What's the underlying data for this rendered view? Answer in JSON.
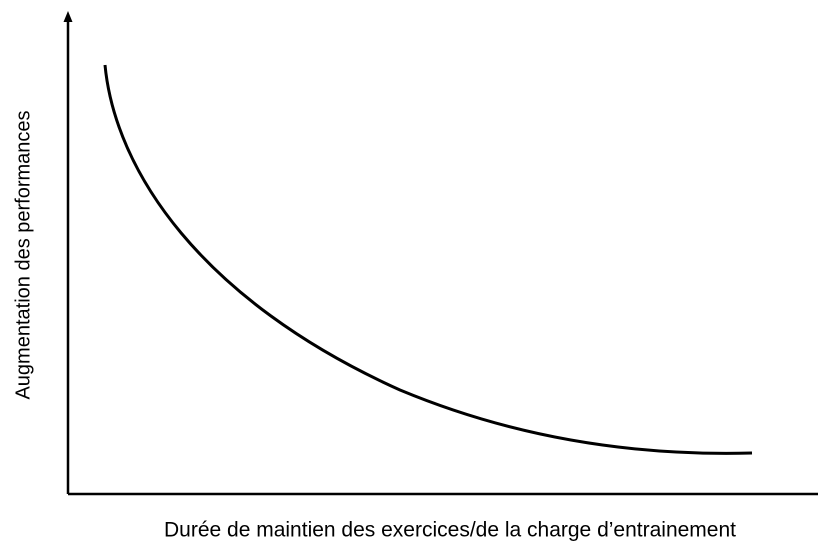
{
  "axes": {
    "y_label": "Augmentation des performances",
    "x_label": "Durée de maintien des exercices/de la charge d’entrainement"
  }
}
